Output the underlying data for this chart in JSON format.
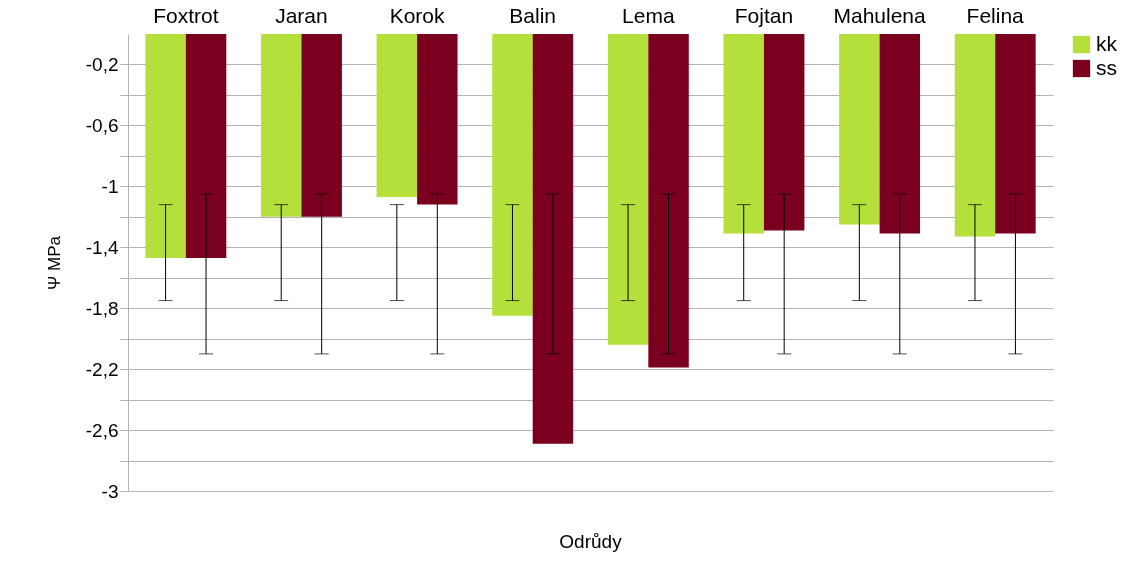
{
  "chart_data": {
    "type": "bar",
    "xlabel": "Odrůdy",
    "ylabel": "Ψ MPa",
    "categories": [
      "Foxtrot",
      "Jaran",
      "Korok",
      "Balin",
      "Lema",
      "Fojtan",
      "Mahulena",
      "Felina"
    ],
    "series": [
      {
        "name": "kk",
        "color": "#b5e03c",
        "values": [
          -1.47,
          -1.2,
          -1.07,
          -1.85,
          -2.04,
          -1.31,
          -1.25,
          -1.33
        ],
        "errors": [
          [
            -1.75,
            -1.12
          ],
          [
            -1.75,
            -1.12
          ],
          [
            -1.75,
            -1.12
          ],
          [
            -1.75,
            -1.12
          ],
          [
            -1.75,
            -1.12
          ],
          [
            -1.75,
            -1.12
          ],
          [
            -1.75,
            -1.12
          ],
          [
            -1.75,
            -1.12
          ]
        ]
      },
      {
        "name": "ss",
        "color": "#7b0020",
        "values": [
          -1.47,
          -1.2,
          -1.12,
          -2.69,
          -2.19,
          -1.29,
          -1.31,
          -1.31
        ],
        "errors": [
          [
            -2.1,
            -1.05
          ],
          [
            -2.1,
            -1.05
          ],
          [
            -2.1,
            -1.05
          ],
          [
            -2.1,
            -1.05
          ],
          [
            -2.1,
            -1.05
          ],
          [
            -2.1,
            -1.05
          ],
          [
            -2.1,
            -1.05
          ],
          [
            -2.1,
            -1.05
          ]
        ]
      }
    ],
    "ylim": [
      -3,
      0
    ],
    "yticks": [
      {
        "value": -0.2,
        "label": "-0,2"
      },
      {
        "value": -0.4,
        "label": null
      },
      {
        "value": -0.6,
        "label": "-0,6"
      },
      {
        "value": -0.8,
        "label": null
      },
      -1,
      {
        "value": -1.2,
        "label": null
      },
      {
        "value": -1.4,
        "label": "-1,4"
      },
      {
        "value": -1.6,
        "label": null
      },
      {
        "value": -1.8,
        "label": "-1,8"
      },
      {
        "value": -2,
        "label": null
      },
      {
        "value": -2.2,
        "label": "-2,2"
      },
      {
        "value": -2.4,
        "label": null
      },
      {
        "value": -2.6,
        "label": "-2,6"
      },
      {
        "value": -2.8,
        "label": null
      },
      -3
    ],
    "grid": "y",
    "legend": "right"
  }
}
